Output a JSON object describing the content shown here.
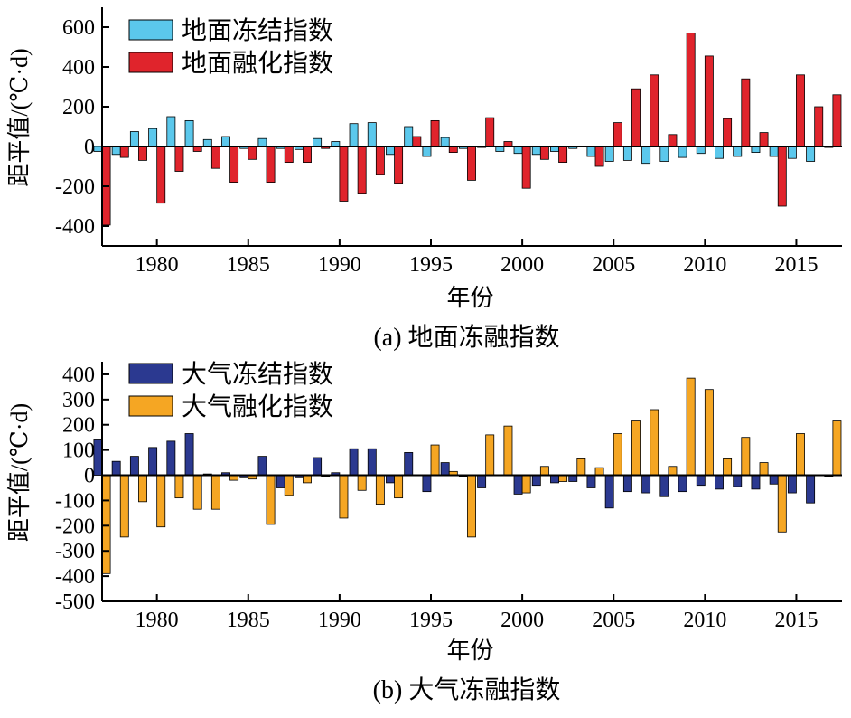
{
  "colors": {
    "ground_freeze": "#5bc8ec",
    "ground_thaw": "#e0242c",
    "air_freeze": "#2b3990",
    "air_thaw": "#f5a623"
  },
  "chart_data": [
    {
      "type": "bar",
      "caption": "(a) 地面冻融指数",
      "xlabel": "年份",
      "ylabel": "距平值/(℃·d)",
      "xlim": [
        1977,
        2017.5
      ],
      "ylim": [
        -500,
        700
      ],
      "x_ticks": [
        1980,
        1985,
        1990,
        1995,
        2000,
        2005,
        2010,
        2015
      ],
      "y_ticks": [
        -400,
        -200,
        0,
        200,
        400,
        600
      ],
      "legend": "top-left",
      "grid": false,
      "categories": [
        1977,
        1978,
        1979,
        1980,
        1981,
        1982,
        1983,
        1984,
        1985,
        1986,
        1987,
        1988,
        1989,
        1990,
        1991,
        1992,
        1993,
        1994,
        1995,
        1996,
        1997,
        1998,
        1999,
        2000,
        2001,
        2002,
        2003,
        2004,
        2005,
        2006,
        2007,
        2008,
        2009,
        2010,
        2011,
        2012,
        2013,
        2014,
        2015,
        2016,
        2017
      ],
      "series": [
        {
          "name": "地面冻结指数",
          "color_key": "ground_freeze",
          "values": [
            -25,
            -40,
            75,
            90,
            150,
            130,
            35,
            50,
            -10,
            40,
            -10,
            -15,
            40,
            25,
            115,
            120,
            -40,
            100,
            -50,
            45,
            -10,
            -5,
            -25,
            -35,
            -40,
            -25,
            -10,
            -50,
            -75,
            -70,
            -85,
            -75,
            -55,
            -35,
            -60,
            -50,
            -30,
            -50,
            -60,
            -75,
            -5
          ]
        },
        {
          "name": "地面融化指数",
          "color_key": "ground_thaw",
          "values": [
            -395,
            -55,
            -70,
            -285,
            -125,
            -25,
            -110,
            -180,
            -65,
            -180,
            -80,
            -80,
            -10,
            -275,
            -235,
            -140,
            -185,
            50,
            130,
            -30,
            -170,
            145,
            25,
            -210,
            -65,
            -80,
            0,
            -100,
            120,
            290,
            360,
            60,
            570,
            455,
            140,
            340,
            70,
            -300,
            360,
            200,
            260
          ]
        }
      ]
    },
    {
      "type": "bar",
      "caption": "(b) 大气冻融指数",
      "xlabel": "年份",
      "ylabel": "距平值/(℃·d)",
      "xlim": [
        1977,
        2017.5
      ],
      "ylim": [
        -500,
        450
      ],
      "x_ticks": [
        1980,
        1985,
        1990,
        1995,
        2000,
        2005,
        2010,
        2015
      ],
      "y_ticks": [
        -500,
        -400,
        -300,
        -200,
        -100,
        0,
        100,
        200,
        300,
        400
      ],
      "legend": "top-left",
      "grid": false,
      "categories": [
        1977,
        1978,
        1979,
        1980,
        1981,
        1982,
        1983,
        1984,
        1985,
        1986,
        1987,
        1988,
        1989,
        1990,
        1991,
        1992,
        1993,
        1994,
        1995,
        1996,
        1997,
        1998,
        1999,
        2000,
        2001,
        2002,
        2003,
        2004,
        2005,
        2006,
        2007,
        2008,
        2009,
        2010,
        2011,
        2012,
        2013,
        2014,
        2015,
        2016,
        2017
      ],
      "series": [
        {
          "name": "大气冻结指数",
          "color_key": "air_freeze",
          "values": [
            140,
            55,
            75,
            110,
            135,
            165,
            5,
            10,
            -10,
            75,
            -50,
            -10,
            70,
            10,
            105,
            105,
            -30,
            90,
            -65,
            50,
            -5,
            -50,
            0,
            -75,
            -40,
            -30,
            -25,
            -50,
            -130,
            -65,
            -70,
            -85,
            -65,
            -40,
            -55,
            -45,
            -55,
            -35,
            -70,
            -110,
            -5
          ]
        },
        {
          "name": "大气融化指数",
          "color_key": "air_thaw",
          "values": [
            -390,
            -245,
            -105,
            -205,
            -90,
            -135,
            -135,
            -20,
            -15,
            -195,
            -80,
            -30,
            -5,
            -170,
            -60,
            -115,
            -90,
            0,
            120,
            15,
            -245,
            160,
            195,
            -70,
            35,
            -25,
            65,
            30,
            165,
            215,
            260,
            35,
            385,
            340,
            65,
            150,
            50,
            -225,
            165,
            0,
            215
          ]
        }
      ]
    }
  ]
}
